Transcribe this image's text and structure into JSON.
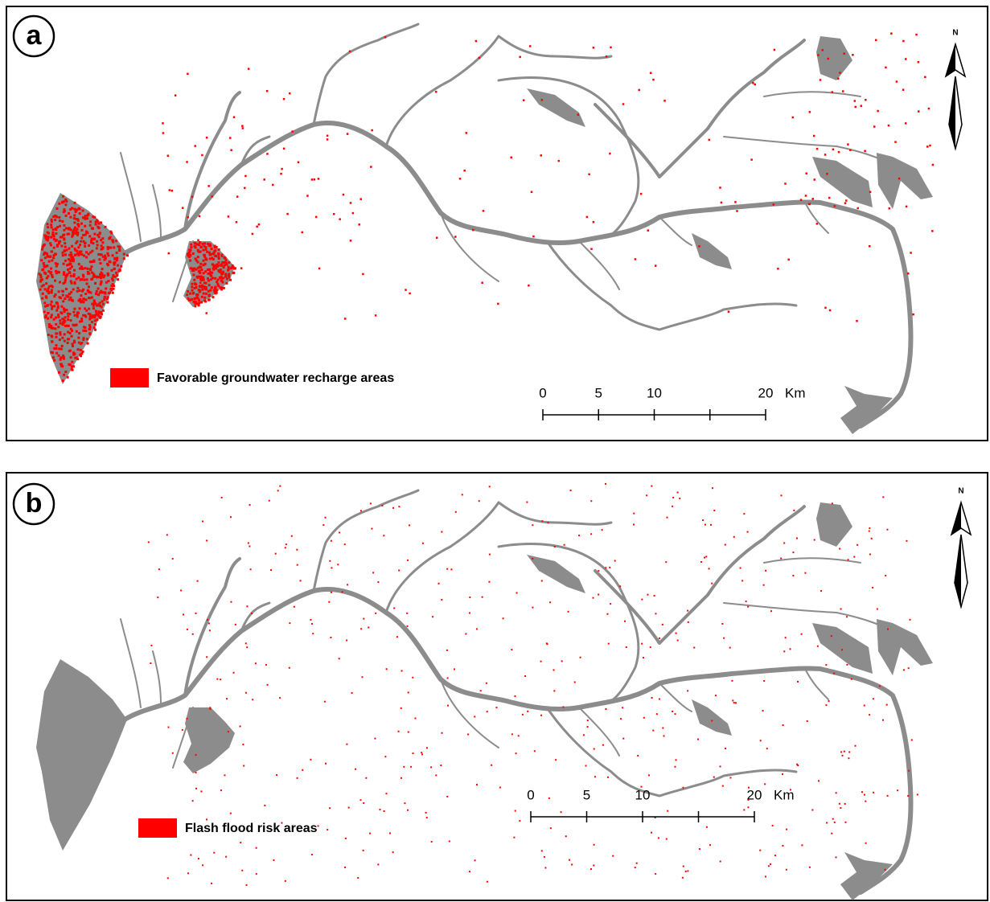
{
  "panels": [
    {
      "label": "a",
      "legend": "Favorable groundwater recharge areas",
      "north": "N",
      "scale": {
        "ticks": [
          0,
          5,
          10,
          20
        ],
        "unit": "Km"
      }
    },
    {
      "label": "b",
      "legend": "Flash flood risk areas",
      "north": "N",
      "scale": {
        "ticks": [
          0,
          5,
          10,
          20
        ],
        "unit": "Km"
      }
    }
  ]
}
